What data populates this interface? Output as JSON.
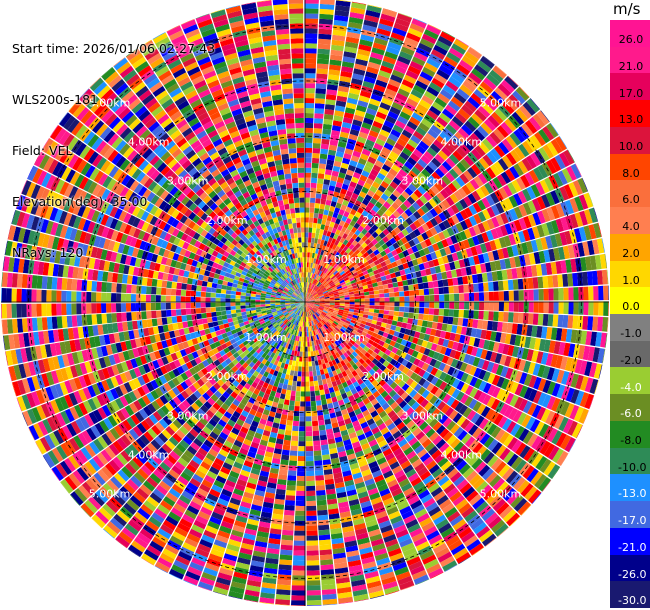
{
  "info": {
    "start_time": "Start time: 2026/01/06 02:27:43",
    "instrument": "WLS200s-181",
    "field": "Field: VEL",
    "elevation": "Elevation(deg): 35.00",
    "nrays": "NRays: 120"
  },
  "colorbar": {
    "unit": "m/s",
    "labels": [
      "26.0",
      "21.0",
      "17.0",
      "13.0",
      "10.0",
      "8.0",
      "6.0",
      "4.0",
      "2.0",
      "1.0",
      "0.0",
      "-1.0",
      "-2.0",
      "-4.0",
      "-6.0",
      "-8.0",
      "-10.0",
      "-13.0",
      "-17.0",
      "-21.0",
      "-26.0",
      "-30.0"
    ],
    "colors": [
      "#ff1493",
      "#ff1a8c",
      "#e6005c",
      "#ff0000",
      "#dc143c",
      "#ff4500",
      "#fa6f3c",
      "#ff7f50",
      "#ffa500",
      "#ffd700",
      "#ffff00",
      "#808080",
      "#696969",
      "#9acd32",
      "#6b8e23",
      "#228b22",
      "#2e8b57",
      "#1e90ff",
      "#4169e1",
      "#0000ff",
      "#00008b",
      "#191970"
    ]
  },
  "chart_data": {
    "type": "ppi_polar",
    "field": "VEL",
    "units": "m/s",
    "nrays": 120,
    "range_rings_km": [
      1,
      2,
      3,
      4,
      5
    ],
    "ring_labels": [
      "1.00km",
      "2.00km",
      "3.00km",
      "4.00km",
      "5.00km"
    ],
    "vmin": -30.0,
    "vmax": 26.0
  }
}
